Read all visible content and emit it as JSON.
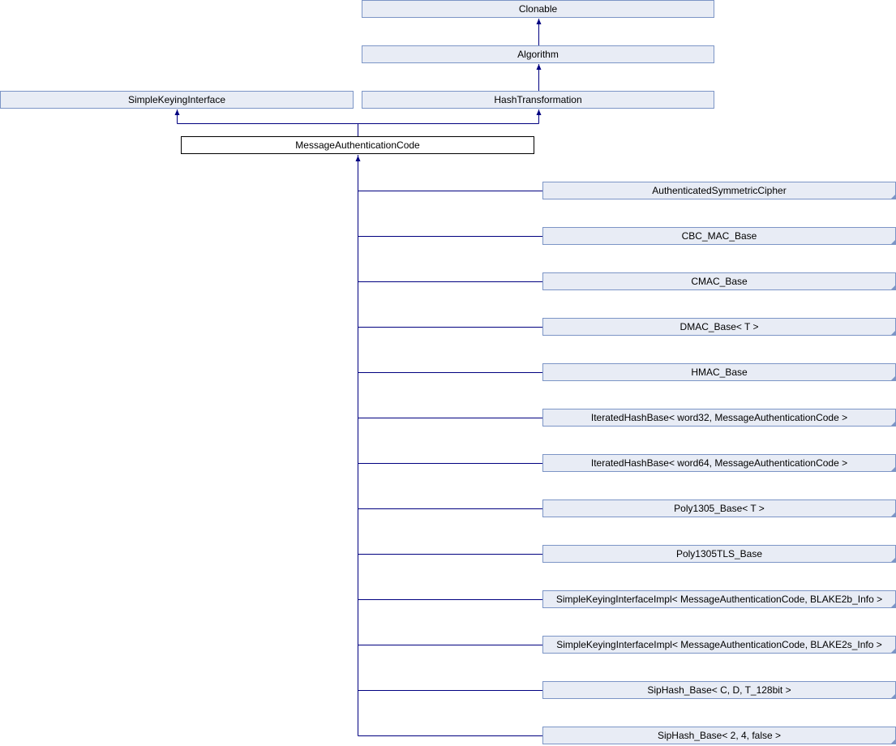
{
  "diagram": {
    "ancestors": {
      "clonable": "Clonable",
      "algorithm": "Algorithm",
      "hash_transformation": "HashTransformation",
      "simple_keying_interface": "SimpleKeyingInterface"
    },
    "current_class": "MessageAuthenticationCode",
    "derived_classes": [
      "AuthenticatedSymmetricCipher",
      "CBC_MAC_Base",
      "CMAC_Base",
      "DMAC_Base< T >",
      "HMAC_Base",
      "IteratedHashBase< word32, MessageAuthenticationCode >",
      "IteratedHashBase< word64, MessageAuthenticationCode >",
      "Poly1305_Base< T >",
      "Poly1305TLS_Base",
      "SimpleKeyingInterfaceImpl< MessageAuthenticationCode, BLAKE2b_Info >",
      "SimpleKeyingInterfaceImpl< MessageAuthenticationCode, BLAKE2s_Info >",
      "SipHash_Base< C, D, T_128bit >",
      "SipHash_Base< 2, 4, false >"
    ],
    "colors": {
      "edge": "#000080",
      "box_fill": "#e8ecf5",
      "box_border": "#7c95c6"
    }
  }
}
